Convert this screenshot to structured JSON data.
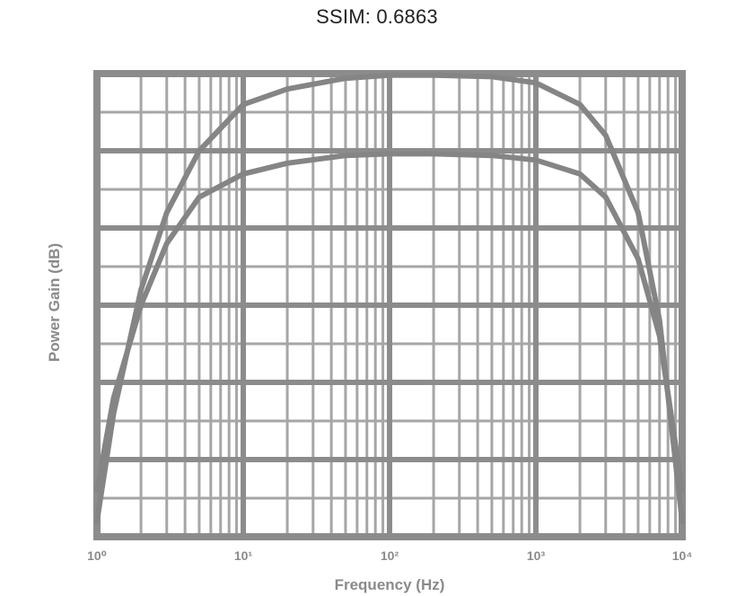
{
  "title": "SSIM: 0.6863",
  "chart_data": {
    "type": "line",
    "xlabel": "Frequency (Hz)",
    "ylabel": "Power Gain (dB)",
    "x_scale": "log",
    "xlim": [
      1,
      10000
    ],
    "x_ticks": [
      1,
      10,
      100,
      1000,
      10000
    ],
    "x_tick_labels": [
      "10⁰",
      "10¹",
      "10²",
      "10³",
      "10⁴"
    ],
    "ylim": [
      -30,
      0
    ],
    "grid": true,
    "series": [
      {
        "x": [
          1,
          1.3,
          2,
          3,
          5,
          10,
          20,
          50,
          100,
          200,
          500,
          1000,
          2000,
          3000,
          5000,
          7000,
          10000
        ],
        "y": [
          -29,
          -22,
          -14,
          -9,
          -5,
          -2,
          -1,
          -0.3,
          -0.1,
          -0.1,
          -0.2,
          -0.6,
          -2,
          -4,
          -9,
          -16,
          -29
        ]
      },
      {
        "x": [
          1,
          1.3,
          2,
          3,
          5,
          10,
          20,
          50,
          100,
          200,
          500,
          1000,
          2000,
          3000,
          5000,
          7000,
          10000
        ],
        "y": [
          -27,
          -21,
          -15,
          -11,
          -8,
          -6.5,
          -5.8,
          -5.3,
          -5.2,
          -5.2,
          -5.3,
          -5.6,
          -6.5,
          -8,
          -12,
          -17,
          -27
        ]
      }
    ],
    "colors": {
      "line": "#858585",
      "grid_major": "#8c8c8c",
      "grid_minor": "#a6a6a6"
    }
  }
}
